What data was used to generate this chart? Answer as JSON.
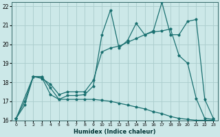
{
  "xlabel": "Humidex (Indice chaleur)",
  "ylabel": "",
  "bg_color": "#cce8e8",
  "grid_color": "#aacccc",
  "line_color": "#1a7070",
  "xlim": [
    -0.5,
    23.5
  ],
  "ylim": [
    16,
    22.2
  ],
  "yticks": [
    16,
    17,
    18,
    19,
    20,
    21,
    22
  ],
  "xticks": [
    0,
    1,
    2,
    3,
    4,
    5,
    6,
    7,
    8,
    9,
    10,
    11,
    12,
    13,
    14,
    15,
    16,
    17,
    18,
    19,
    20,
    21,
    22,
    23
  ],
  "line1_x": [
    0,
    1,
    2,
    3,
    4,
    5,
    6,
    7,
    8,
    9,
    10,
    11,
    12,
    13,
    14,
    15,
    16,
    17,
    18,
    19,
    20,
    21,
    22,
    23
  ],
  "line1_y": [
    16.1,
    16.8,
    18.3,
    18.3,
    17.7,
    17.1,
    17.3,
    17.3,
    17.35,
    17.8,
    20.5,
    21.8,
    19.8,
    20.2,
    21.1,
    20.5,
    20.7,
    22.2,
    20.5,
    20.5,
    21.2,
    21.3,
    17.1,
    16.1
  ],
  "line2_x": [
    0,
    1,
    2,
    3,
    4,
    5,
    6,
    7,
    8,
    9,
    10,
    11,
    12,
    13,
    14,
    15,
    16,
    17,
    18,
    19,
    20,
    21,
    22,
    23
  ],
  "line2_y": [
    16.1,
    17.0,
    18.3,
    18.2,
    17.9,
    17.35,
    17.5,
    17.5,
    17.5,
    18.1,
    19.6,
    19.8,
    19.9,
    20.1,
    20.3,
    20.5,
    20.65,
    20.7,
    20.8,
    19.4,
    19.0,
    17.15,
    16.1,
    16.05
  ],
  "line3_x": [
    0,
    2,
    3,
    4,
    5,
    6,
    7,
    8,
    9,
    10,
    11,
    12,
    13,
    14,
    15,
    16,
    17,
    18,
    19,
    20,
    21,
    22,
    23
  ],
  "line3_y": [
    16.1,
    18.3,
    18.25,
    17.35,
    17.1,
    17.1,
    17.1,
    17.1,
    17.1,
    17.05,
    17.0,
    16.9,
    16.8,
    16.7,
    16.6,
    16.45,
    16.35,
    16.2,
    16.1,
    16.05,
    16.0,
    16.0,
    16.0
  ]
}
